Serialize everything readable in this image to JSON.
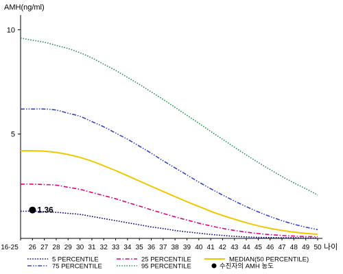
{
  "chart_data": {
    "type": "line",
    "ylabel": "AMH(ng/ml)",
    "xlabel": "나이",
    "categories": [
      "16-25",
      "26",
      "27",
      "28",
      "29",
      "30",
      "31",
      "32",
      "33",
      "34",
      "35",
      "36",
      "37",
      "38",
      "39",
      "40",
      "41",
      "42",
      "43",
      "44",
      "45",
      "46",
      "47",
      "48",
      "49",
      "50"
    ],
    "y_ticks": [
      5,
      10
    ],
    "ylim": [
      0,
      11
    ],
    "grid": false,
    "legend_position": "bottom",
    "series": [
      {
        "name": "5 PERCENTILE",
        "color": "#000080",
        "dash": "dot",
        "values": [
          1.3,
          1.3,
          1.28,
          1.25,
          1.2,
          1.15,
          1.05,
          0.95,
          0.85,
          0.75,
          0.65,
          0.55,
          0.47,
          0.38,
          0.31,
          0.25,
          0.19,
          0.14,
          0.1,
          0.07,
          0.05,
          0.04,
          0.03,
          0.03,
          0.02,
          0.02
        ]
      },
      {
        "name": "25 PERCENTILE",
        "color": "#e0007f",
        "dash": "dashdot",
        "values": [
          2.6,
          2.6,
          2.58,
          2.55,
          2.45,
          2.35,
          2.2,
          2.05,
          1.9,
          1.72,
          1.55,
          1.37,
          1.2,
          1.03,
          0.88,
          0.73,
          0.6,
          0.48,
          0.38,
          0.3,
          0.23,
          0.18,
          0.14,
          0.11,
          0.09,
          0.08
        ]
      },
      {
        "name": "MEDIAN(50 PERCENTILE)",
        "color": "#f2c600",
        "dash": "solid",
        "values": [
          4.2,
          4.2,
          4.18,
          4.12,
          4.02,
          3.88,
          3.7,
          3.48,
          3.25,
          3.0,
          2.75,
          2.5,
          2.25,
          2.0,
          1.76,
          1.53,
          1.3,
          1.1,
          0.92,
          0.75,
          0.6,
          0.48,
          0.38,
          0.3,
          0.24,
          0.2
        ]
      },
      {
        "name": "75 PERCENTILE",
        "color": "#3344cc",
        "dash": "dashdotdot",
        "values": [
          6.2,
          6.2,
          6.2,
          6.15,
          6.0,
          5.85,
          5.6,
          5.35,
          5.05,
          4.75,
          4.42,
          4.08,
          3.72,
          3.38,
          3.04,
          2.7,
          2.38,
          2.08,
          1.79,
          1.52,
          1.27,
          1.05,
          0.85,
          0.68,
          0.54,
          0.42
        ]
      },
      {
        "name": "95 PERCENTILE",
        "color": "#2e8b57",
        "dash": "dot",
        "values": [
          9.6,
          9.5,
          9.4,
          9.25,
          9.1,
          8.9,
          8.65,
          8.35,
          8.05,
          7.72,
          7.38,
          7.02,
          6.66,
          6.28,
          5.9,
          5.52,
          5.13,
          4.75,
          4.37,
          4.0,
          3.64,
          3.3,
          2.97,
          2.66,
          2.38,
          2.08
        ]
      }
    ],
    "marker": {
      "label": "수진자의 AMH 농도",
      "category": "26",
      "value": 1.36,
      "text": "1.36",
      "color": "#000000"
    }
  }
}
